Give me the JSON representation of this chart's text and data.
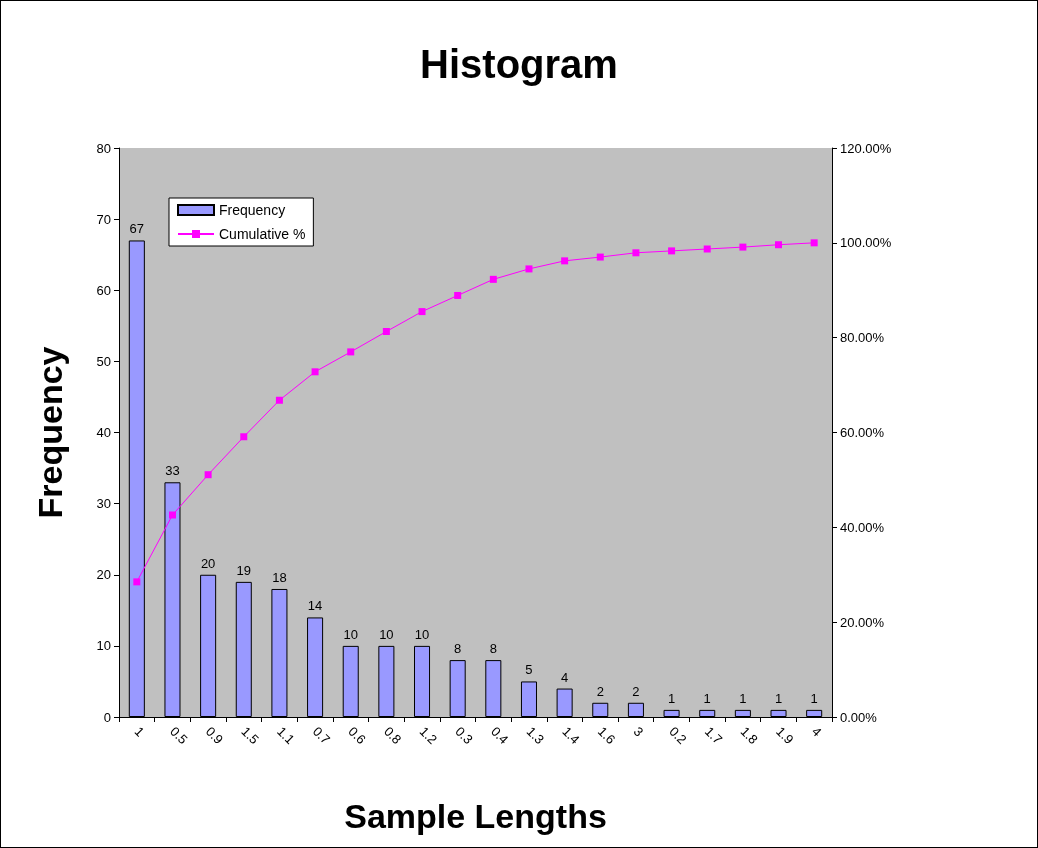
{
  "chart_data": {
    "type": "bar",
    "title": "Histogram",
    "xlabel": "Sample Lengths",
    "ylabel": "Frequency",
    "categories": [
      "1",
      "0.5",
      "0.9",
      "1.5",
      "1.1",
      "0.7",
      "0.6",
      "0.8",
      "1.2",
      "0.3",
      "0.4",
      "1.3",
      "1.4",
      "1.6",
      "3",
      "0.2",
      "1.7",
      "1.8",
      "1.9",
      "4"
    ],
    "series": [
      {
        "name": "Frequency",
        "color": "#9999ff",
        "values": [
          67,
          33,
          20,
          19,
          18,
          14,
          10,
          10,
          10,
          8,
          8,
          5,
          4,
          2,
          2,
          1,
          1,
          1,
          1,
          1
        ],
        "value_labels": [
          "67",
          "33",
          "20",
          "19",
          "18",
          "14",
          "10",
          "10",
          "10",
          "8",
          "8",
          "5",
          "4",
          "2",
          "2",
          "1",
          "1",
          "1",
          "1",
          "1"
        ]
      },
      {
        "name": "Cumulative %",
        "type": "line",
        "axis": "y2",
        "color": "#ff00ff",
        "marker": "square",
        "values": [
          28.5,
          42.6,
          51.1,
          59.1,
          66.8,
          72.8,
          77.0,
          81.3,
          85.5,
          88.9,
          92.3,
          94.5,
          96.2,
          97.0,
          97.9,
          98.3,
          98.7,
          99.1,
          99.6,
          100
        ]
      }
    ],
    "ylim": [
      0,
      80
    ],
    "yticks": [
      0,
      10,
      20,
      30,
      40,
      50,
      60,
      70,
      80
    ],
    "y2lim": [
      0,
      120
    ],
    "y2ticks": [
      {
        "value": 0,
        "label": "0.00%"
      },
      {
        "value": 20,
        "label": "20.00%"
      },
      {
        "value": 40,
        "label": "40.00%"
      },
      {
        "value": 60,
        "label": "60.00%"
      },
      {
        "value": 80,
        "label": "80.00%"
      },
      {
        "value": 100,
        "label": "100.00%"
      },
      {
        "value": 120,
        "label": "120.00%"
      }
    ],
    "grid": false,
    "legend": "top left"
  }
}
